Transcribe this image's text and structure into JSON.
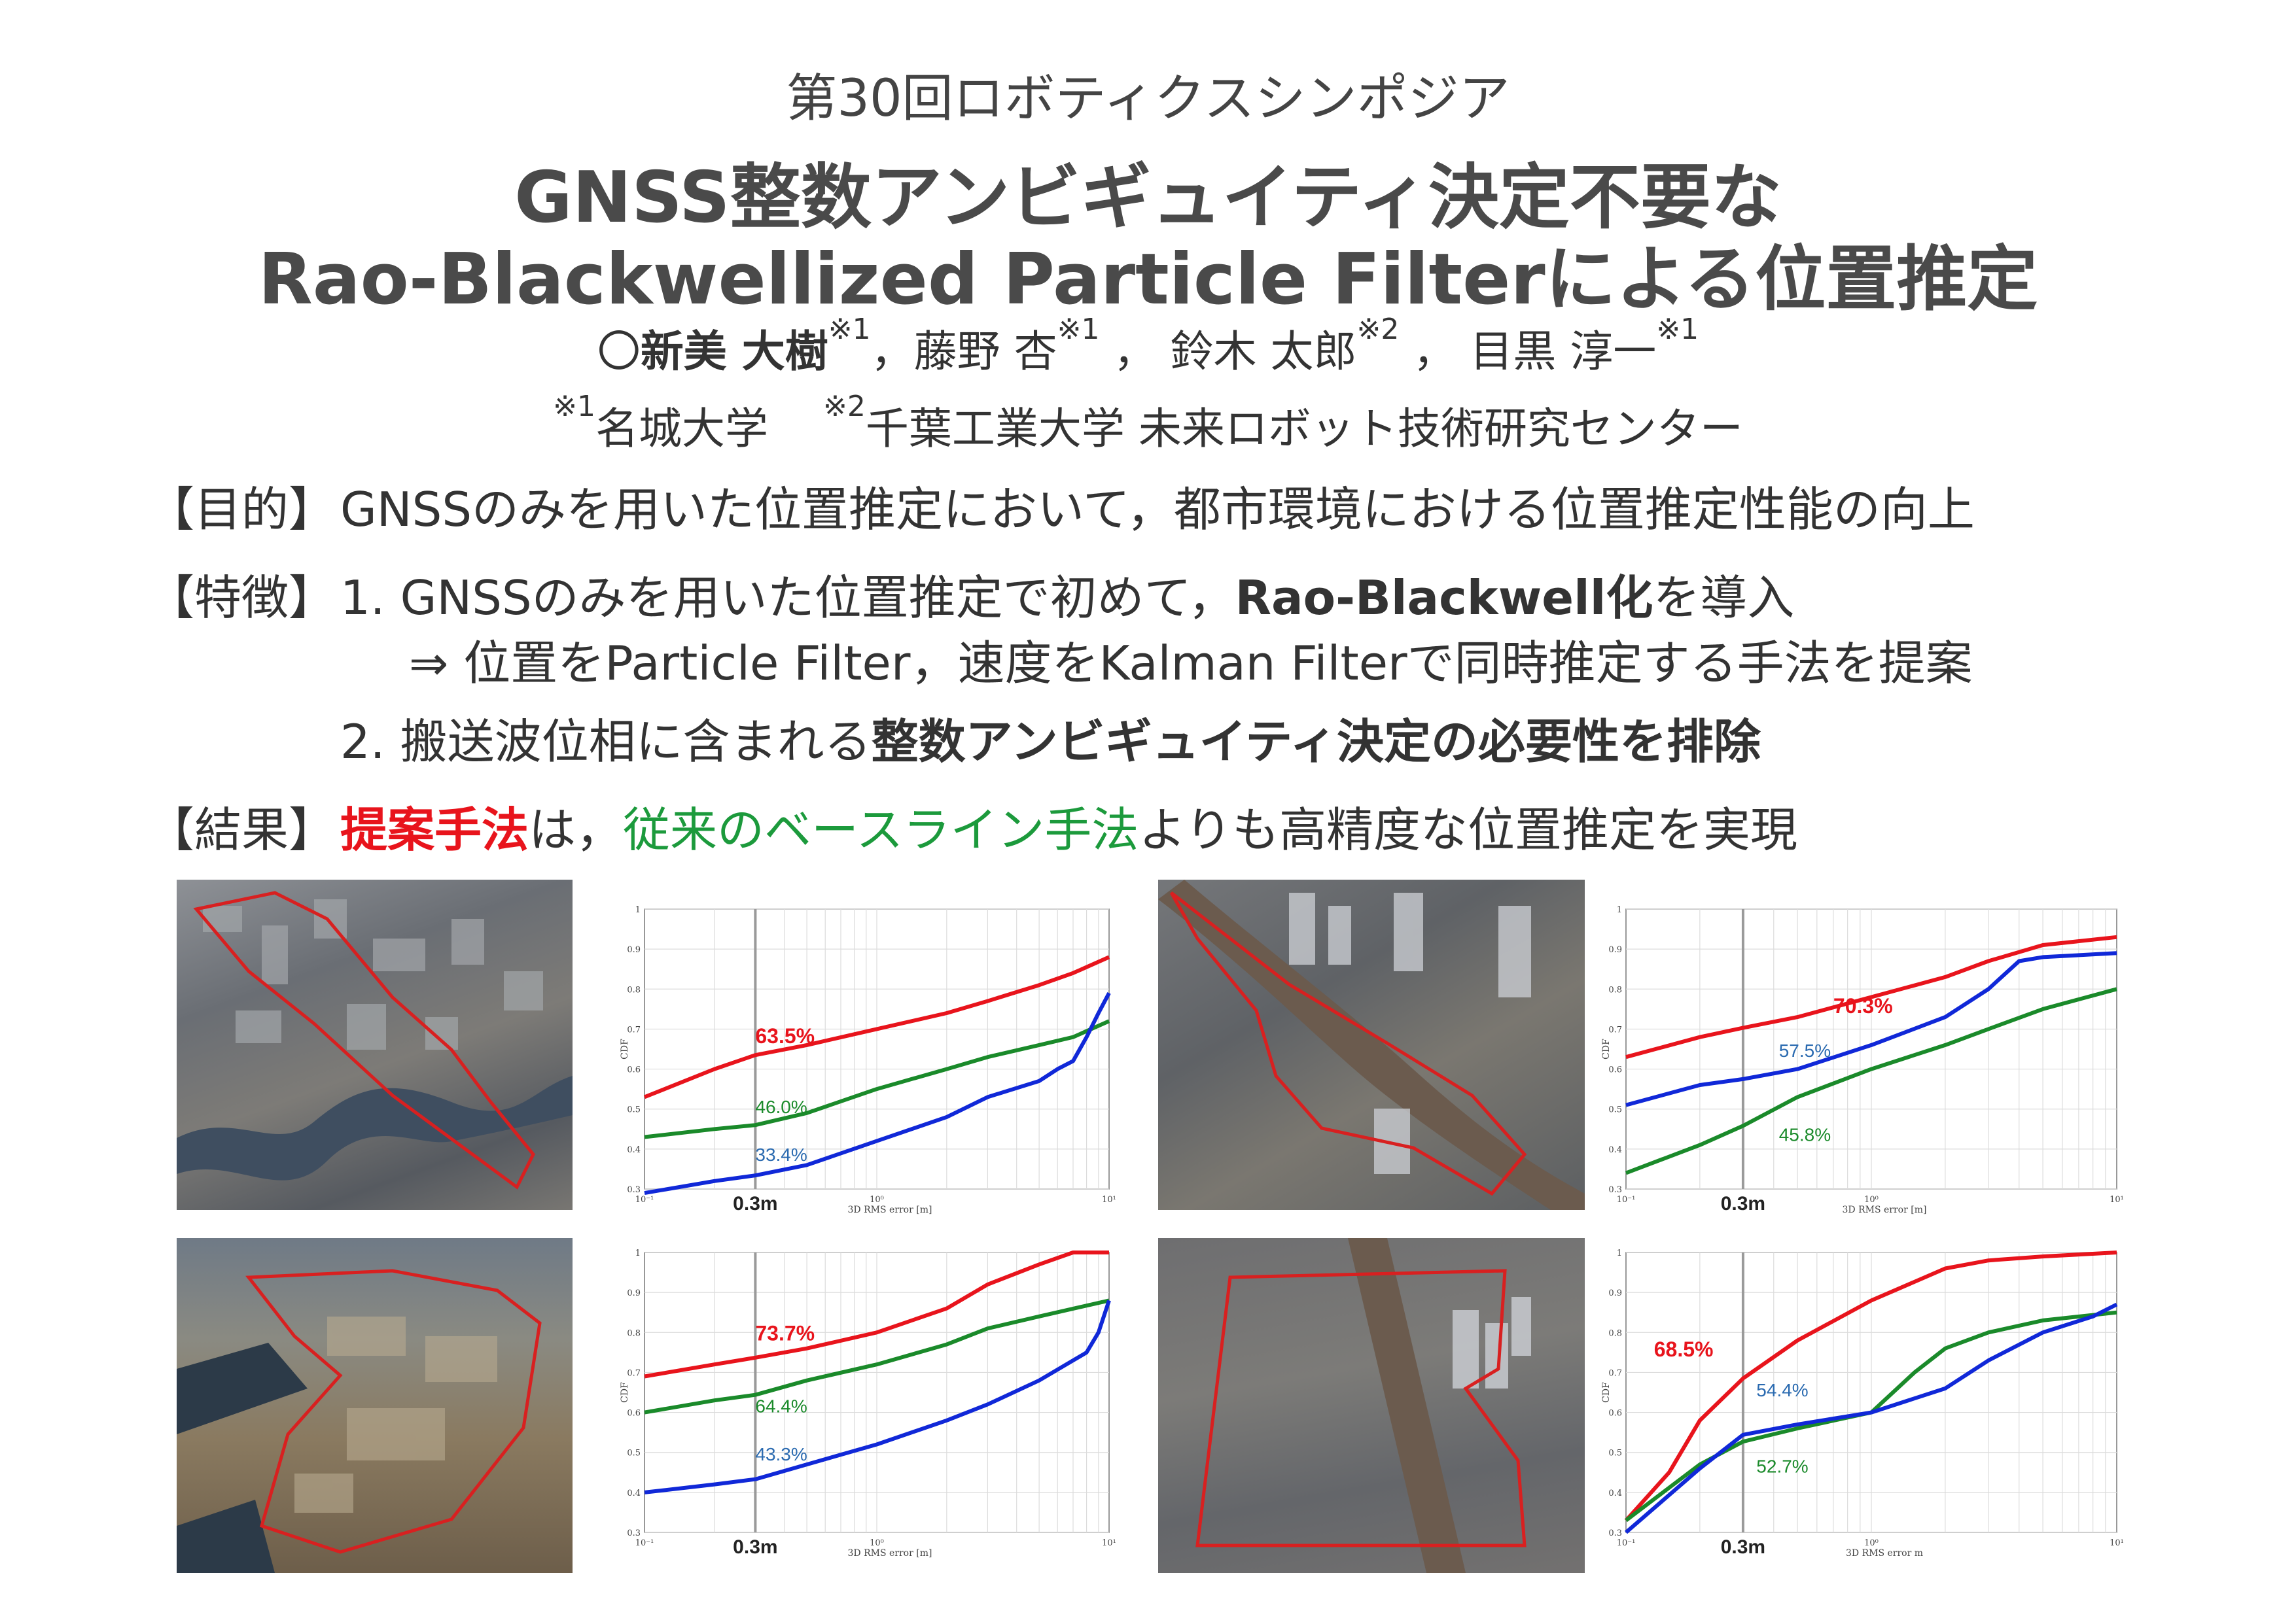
{
  "header": {
    "conference": "第30回ロボティクスシンポジア",
    "title_line1": "GNSS整数アンビギュイティ決定不要な",
    "title_line2": "Rao-Blackwellized Particle Filterによる位置推定"
  },
  "authors": {
    "presenter_mark": "〇",
    "presenter": "新美 大樹",
    "presenter_sup": "※1",
    "sep1": "，",
    "a2": "藤野 杏",
    "a2_sup": "※1",
    "sep2": " ，",
    "a3": "鈴木 太郎",
    "a3_sup": "※2",
    "sep3": " ，",
    "a4": "目黒 淳一",
    "a4_sup": "※1"
  },
  "affiliations": {
    "sup1": "※1",
    "aff1": "名城大学",
    "sup2": "※2",
    "aff2": "千葉工業大学 未来ロボット技術研究センター"
  },
  "purpose": {
    "label": "【目的】",
    "text": "GNSSのみを用いた位置推定において，都市環境における位置推定性能の向上"
  },
  "features": {
    "label": "【特徴】",
    "item1_prefix": "1. GNSSのみを用いた位置推定で初めて，",
    "item1_bold": "Rao-Blackwell化",
    "item1_suffix": "を導入",
    "item1_sub": "⇒ 位置をParticle Filter，速度をKalman Filterで同時推定する手法を提案",
    "item2_prefix": "2. 搬送波位相に含まれる",
    "item2_bold": "整数アンビギュイティ決定の必要性を排除"
  },
  "results": {
    "label": "【結果】",
    "red": "提案手法",
    "mid": "は，",
    "green": "従来のベースライン手法",
    "suffix": "よりも高精度な位置推定を実現"
  },
  "colors": {
    "proposed": "#e8141c",
    "baseline_green": "#1a8a2a",
    "blue": "#1028d8",
    "label_blue": "#2a6ab0",
    "route": "#d82020"
  },
  "chart_data": [
    {
      "type": "line",
      "xlabel": "3D RMS error [m]",
      "ylabel": "CDF",
      "xscale": "log",
      "xlim": [
        0.1,
        10
      ],
      "ylim": [
        0.3,
        1.0
      ],
      "yticks": [
        "0.3",
        "0.4",
        "0.5",
        "0.6",
        "0.7",
        "0.8",
        "0.9",
        "1"
      ],
      "xticks": [
        "10⁻¹",
        "10⁰",
        "10¹"
      ],
      "marker_label": "0.3m",
      "marker_x": 0.3,
      "series": [
        {
          "color": "#e8141c",
          "x": [
            0.1,
            0.2,
            0.3,
            0.5,
            1,
            2,
            3,
            5,
            7,
            10
          ],
          "y": [
            0.53,
            0.6,
            0.635,
            0.66,
            0.7,
            0.74,
            0.77,
            0.81,
            0.84,
            0.88
          ]
        },
        {
          "color": "#1a8a2a",
          "x": [
            0.1,
            0.2,
            0.3,
            0.5,
            1,
            2,
            3,
            5,
            7,
            10
          ],
          "y": [
            0.43,
            0.45,
            0.46,
            0.49,
            0.55,
            0.6,
            0.63,
            0.66,
            0.68,
            0.72
          ]
        },
        {
          "color": "#1028d8",
          "x": [
            0.1,
            0.2,
            0.3,
            0.5,
            1,
            2,
            3,
            5,
            6,
            7,
            8,
            9,
            10
          ],
          "y": [
            0.29,
            0.32,
            0.334,
            0.36,
            0.42,
            0.48,
            0.53,
            0.57,
            0.6,
            0.62,
            0.68,
            0.74,
            0.79
          ]
        }
      ],
      "annotations": [
        {
          "text": "63.5%",
          "x": 0.3,
          "y": 0.665,
          "color": "#e8141c",
          "bold": true
        },
        {
          "text": "46.0%",
          "x": 0.3,
          "y": 0.49,
          "color": "#1a8a2a",
          "bold": false
        },
        {
          "text": "33.4%",
          "x": 0.3,
          "y": 0.37,
          "color": "#2a6ab0",
          "bold": false
        }
      ]
    },
    {
      "type": "line",
      "xlabel": "3D RMS error [m]",
      "ylabel": "CDF",
      "xscale": "log",
      "xlim": [
        0.1,
        10
      ],
      "ylim": [
        0.3,
        1.0
      ],
      "yticks": [
        "0.3",
        "0.4",
        "0.5",
        "0.6",
        "0.7",
        "0.8",
        "0.9",
        "1"
      ],
      "xticks": [
        "10⁻¹",
        "10⁰",
        "10¹"
      ],
      "marker_label": "0.3m",
      "marker_x": 0.3,
      "series": [
        {
          "color": "#e8141c",
          "x": [
            0.1,
            0.2,
            0.3,
            0.5,
            1,
            2,
            3,
            5,
            10
          ],
          "y": [
            0.63,
            0.68,
            0.703,
            0.73,
            0.78,
            0.83,
            0.87,
            0.91,
            0.93
          ]
        },
        {
          "color": "#1028d8",
          "x": [
            0.1,
            0.2,
            0.3,
            0.5,
            1,
            2,
            3,
            4,
            5,
            10
          ],
          "y": [
            0.51,
            0.56,
            0.575,
            0.6,
            0.66,
            0.73,
            0.8,
            0.87,
            0.88,
            0.89
          ]
        },
        {
          "color": "#1a8a2a",
          "x": [
            0.1,
            0.2,
            0.3,
            0.5,
            1,
            2,
            3,
            5,
            10
          ],
          "y": [
            0.34,
            0.41,
            0.458,
            0.53,
            0.6,
            0.66,
            0.7,
            0.75,
            0.8
          ]
        }
      ],
      "annotations": [
        {
          "text": "70.3%",
          "x": 0.7,
          "y": 0.74,
          "color": "#e8141c",
          "bold": true
        },
        {
          "text": "57.5%",
          "x": 0.42,
          "y": 0.63,
          "color": "#2a6ab0",
          "bold": false
        },
        {
          "text": "45.8%",
          "x": 0.42,
          "y": 0.42,
          "color": "#1a8a2a",
          "bold": false
        }
      ]
    },
    {
      "type": "line",
      "xlabel": "3D RMS error [m]",
      "ylabel": "CDF",
      "xscale": "log",
      "xlim": [
        0.1,
        10
      ],
      "ylim": [
        0.3,
        1.0
      ],
      "yticks": [
        "0.3",
        "0.4",
        "0.5",
        "0.6",
        "0.7",
        "0.8",
        "0.9",
        "1"
      ],
      "xticks": [
        "10⁻¹",
        "10⁰",
        "10¹"
      ],
      "marker_label": "0.3m",
      "marker_x": 0.3,
      "series": [
        {
          "color": "#e8141c",
          "x": [
            0.1,
            0.2,
            0.3,
            0.5,
            1,
            2,
            3,
            5,
            7,
            10
          ],
          "y": [
            0.69,
            0.72,
            0.737,
            0.76,
            0.8,
            0.86,
            0.92,
            0.97,
            1.0,
            1.0
          ]
        },
        {
          "color": "#1a8a2a",
          "x": [
            0.1,
            0.2,
            0.3,
            0.5,
            1,
            2,
            3,
            5,
            10
          ],
          "y": [
            0.6,
            0.63,
            0.644,
            0.68,
            0.72,
            0.77,
            0.81,
            0.84,
            0.88
          ]
        },
        {
          "color": "#1028d8",
          "x": [
            0.1,
            0.2,
            0.3,
            0.5,
            1,
            2,
            3,
            5,
            7,
            8,
            9,
            10
          ],
          "y": [
            0.4,
            0.42,
            0.433,
            0.47,
            0.52,
            0.58,
            0.62,
            0.68,
            0.73,
            0.75,
            0.8,
            0.88
          ]
        }
      ],
      "annotations": [
        {
          "text": "73.7%",
          "x": 0.3,
          "y": 0.78,
          "color": "#e8141c",
          "bold": true
        },
        {
          "text": "64.4%",
          "x": 0.3,
          "y": 0.6,
          "color": "#1a8a2a",
          "bold": false
        },
        {
          "text": "43.3%",
          "x": 0.3,
          "y": 0.48,
          "color": "#2a6ab0",
          "bold": false
        }
      ]
    },
    {
      "type": "line",
      "xlabel": "3D RMS error m",
      "ylabel": "CDF",
      "xscale": "log",
      "xlim": [
        0.1,
        10
      ],
      "ylim": [
        0.3,
        1.0
      ],
      "yticks": [
        "0.3",
        "0.4",
        "0.5",
        "0.6",
        "0.7",
        "0.8",
        "0.9",
        "1"
      ],
      "xticks": [
        "10⁻¹",
        "10⁰",
        "10¹"
      ],
      "marker_label": "0.3m",
      "marker_x": 0.3,
      "series": [
        {
          "color": "#e8141c",
          "x": [
            0.1,
            0.15,
            0.2,
            0.3,
            0.5,
            1,
            2,
            3,
            5,
            10
          ],
          "y": [
            0.33,
            0.45,
            0.58,
            0.685,
            0.78,
            0.88,
            0.96,
            0.98,
            0.99,
            1.0
          ]
        },
        {
          "color": "#1a8a2a",
          "x": [
            0.1,
            0.2,
            0.3,
            0.5,
            1,
            1.5,
            2,
            3,
            5,
            10
          ],
          "y": [
            0.33,
            0.47,
            0.527,
            0.56,
            0.6,
            0.7,
            0.76,
            0.8,
            0.83,
            0.85
          ]
        },
        {
          "color": "#1028d8",
          "x": [
            0.1,
            0.2,
            0.3,
            0.5,
            1,
            2,
            3,
            5,
            8,
            10
          ],
          "y": [
            0.3,
            0.46,
            0.544,
            0.57,
            0.6,
            0.66,
            0.73,
            0.8,
            0.84,
            0.87
          ]
        }
      ],
      "annotations": [
        {
          "text": "68.5%",
          "x": 0.13,
          "y": 0.74,
          "color": "#e8141c",
          "bold": true
        },
        {
          "text": "54.4%",
          "x": 0.34,
          "y": 0.64,
          "color": "#2a6ab0",
          "bold": false
        },
        {
          "text": "52.7%",
          "x": 0.34,
          "y": 0.45,
          "color": "#1a8a2a",
          "bold": false
        }
      ]
    }
  ]
}
